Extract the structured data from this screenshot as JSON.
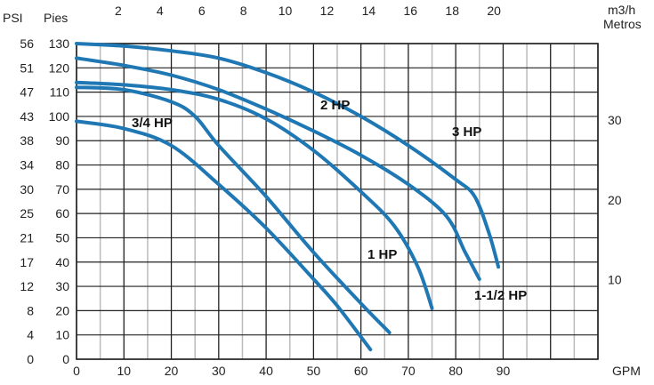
{
  "chart_data": {
    "type": "line",
    "title": "",
    "colors": {
      "curve": "#1f78b4",
      "grid_major": "#222222",
      "grid_minor": "#bbbbbb",
      "text": "#222222"
    },
    "grid": true,
    "axes": {
      "x_bottom": {
        "label": "GPM",
        "range": [
          0,
          110
        ],
        "ticks": [
          0,
          10,
          20,
          30,
          40,
          50,
          60,
          70,
          80,
          90
        ]
      },
      "x_top": {
        "label": "m3/h",
        "ticks": [
          2,
          4,
          6,
          8,
          10,
          12,
          14,
          16,
          18,
          20
        ]
      },
      "y_left_feet": {
        "label": "Pies",
        "range": [
          0,
          130
        ],
        "ticks": [
          0,
          10,
          20,
          30,
          40,
          50,
          60,
          70,
          80,
          90,
          100,
          110,
          120,
          130
        ]
      },
      "y_left_psi": {
        "label": "PSI",
        "ticks": [
          "0",
          "4",
          "8",
          "12",
          "17",
          "21",
          "25",
          "30",
          "34",
          "38",
          "43",
          "47",
          "51",
          "56"
        ]
      },
      "y_right": {
        "label": "Metros",
        "ticks": [
          10,
          20,
          30
        ]
      }
    },
    "series": [
      {
        "name": "3/4 HP",
        "x": [
          0,
          10,
          20,
          30,
          40,
          50,
          55,
          62
        ],
        "y": [
          98,
          95,
          88,
          72,
          54,
          33,
          22,
          4
        ]
      },
      {
        "name": "1 HP",
        "x": [
          0,
          10,
          20,
          25,
          30,
          40,
          50,
          60,
          66
        ],
        "y": [
          112,
          111,
          106,
          100,
          88,
          67,
          44,
          23,
          11
        ]
      },
      {
        "name": "1-1/2 HP",
        "x": [
          0,
          10,
          20,
          30,
          40,
          50,
          60,
          67,
          72,
          75
        ],
        "y": [
          114,
          113,
          111,
          107,
          99,
          86,
          69,
          55,
          38,
          21
        ]
      },
      {
        "name": "2 HP",
        "x": [
          0,
          10,
          20,
          30,
          40,
          50,
          60,
          70,
          78,
          82,
          85
        ],
        "y": [
          124,
          121,
          117,
          111,
          103,
          94,
          84,
          72,
          59,
          44,
          33
        ]
      },
      {
        "name": "3 HP",
        "x": [
          0,
          10,
          20,
          30,
          40,
          50,
          60,
          70,
          80,
          84,
          87,
          89
        ],
        "y": [
          130,
          129,
          127,
          124,
          118,
          110,
          100,
          88,
          74,
          67,
          52,
          38
        ]
      }
    ],
    "labels": [
      {
        "text": "3/4 HP",
        "series": "3/4 HP"
      },
      {
        "text": "1 HP",
        "series": "1 HP"
      },
      {
        "text": "1-1/2  HP",
        "series": "1-1/2 HP"
      },
      {
        "text": "2 HP",
        "series": "2 HP"
      },
      {
        "text": "3 HP",
        "series": "3 HP"
      }
    ]
  }
}
